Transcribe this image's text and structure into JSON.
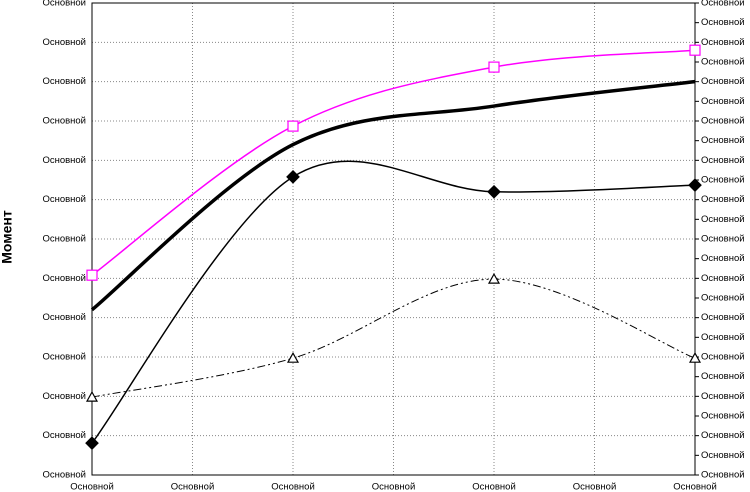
{
  "chart_data": {
    "type": "line",
    "ylabel": "Момент",
    "x": [
      0,
      2,
      4,
      6
    ],
    "xlim": [
      0,
      6
    ],
    "xticks": [
      {
        "value": 0,
        "label": "Основной"
      },
      {
        "value": 1,
        "label": "Основной"
      },
      {
        "value": 2,
        "label": "Основной"
      },
      {
        "value": 3,
        "label": "Основной"
      },
      {
        "value": 4,
        "label": "Основной"
      },
      {
        "value": 5,
        "label": "Основной"
      },
      {
        "value": 6,
        "label": "Основной"
      }
    ],
    "ylim": [
      0,
      12
    ],
    "yticks": [
      {
        "value": 0,
        "label": "Основной"
      },
      {
        "value": 1,
        "label": "Основной"
      },
      {
        "value": 2,
        "label": "Основной"
      },
      {
        "value": 3,
        "label": "Основной"
      },
      {
        "value": 4,
        "label": "Основной"
      },
      {
        "value": 5,
        "label": "Основной"
      },
      {
        "value": 6,
        "label": "Основной"
      },
      {
        "value": 7,
        "label": "Основной"
      },
      {
        "value": 8,
        "label": "Основной"
      },
      {
        "value": 9,
        "label": "Основной"
      },
      {
        "value": 10,
        "label": "Основной"
      },
      {
        "value": 11,
        "label": "Основной"
      },
      {
        "value": 12,
        "label": "Основной"
      }
    ],
    "y2lim": [
      0,
      24
    ],
    "y2ticks": [
      {
        "value": 0,
        "label": "Основной"
      },
      {
        "value": 1,
        "label": "Основной"
      },
      {
        "value": 2,
        "label": "Основной"
      },
      {
        "value": 3,
        "label": "Основной"
      },
      {
        "value": 4,
        "label": "Основной"
      },
      {
        "value": 5,
        "label": "Основной"
      },
      {
        "value": 6,
        "label": "Основной"
      },
      {
        "value": 7,
        "label": "Основной"
      },
      {
        "value": 8,
        "label": "Основной"
      },
      {
        "value": 9,
        "label": "Основной"
      },
      {
        "value": 10,
        "label": "Основной"
      },
      {
        "value": 11,
        "label": "Основной"
      },
      {
        "value": 12,
        "label": "Основной"
      },
      {
        "value": 13,
        "label": "Основной"
      },
      {
        "value": 14,
        "label": "Основной"
      },
      {
        "value": 15,
        "label": "Основной"
      },
      {
        "value": 16,
        "label": "Основной"
      },
      {
        "value": 17,
        "label": "Основной"
      },
      {
        "value": 18,
        "label": "Основной"
      },
      {
        "value": 19,
        "label": "Основной"
      },
      {
        "value": 20,
        "label": "Основной"
      },
      {
        "value": 21,
        "label": "Основной"
      },
      {
        "value": 22,
        "label": "Основной"
      },
      {
        "value": 23,
        "label": "Основной"
      },
      {
        "value": 24,
        "label": "Основной"
      }
    ],
    "grid": true,
    "series": [
      {
        "color": "#ff00ff",
        "width": 1.5,
        "marker": "square",
        "dash": "none",
        "values": [
          5.08,
          8.87,
          10.37,
          10.8
        ]
      },
      {
        "color": "#000000",
        "width": 3.5,
        "marker": "none",
        "dash": "none",
        "values": [
          4.2,
          8.4,
          9.38,
          10.0
        ]
      },
      {
        "color": "#000000",
        "width": 1.5,
        "marker": "diamond",
        "dash": "none",
        "values": [
          0.81,
          7.58,
          7.2,
          7.37
        ]
      },
      {
        "color": "#000000",
        "width": 1,
        "marker": "triangle",
        "dash": "8 3 2 3 2 3",
        "values": [
          1.98,
          2.97,
          4.98,
          2.97
        ]
      }
    ]
  }
}
